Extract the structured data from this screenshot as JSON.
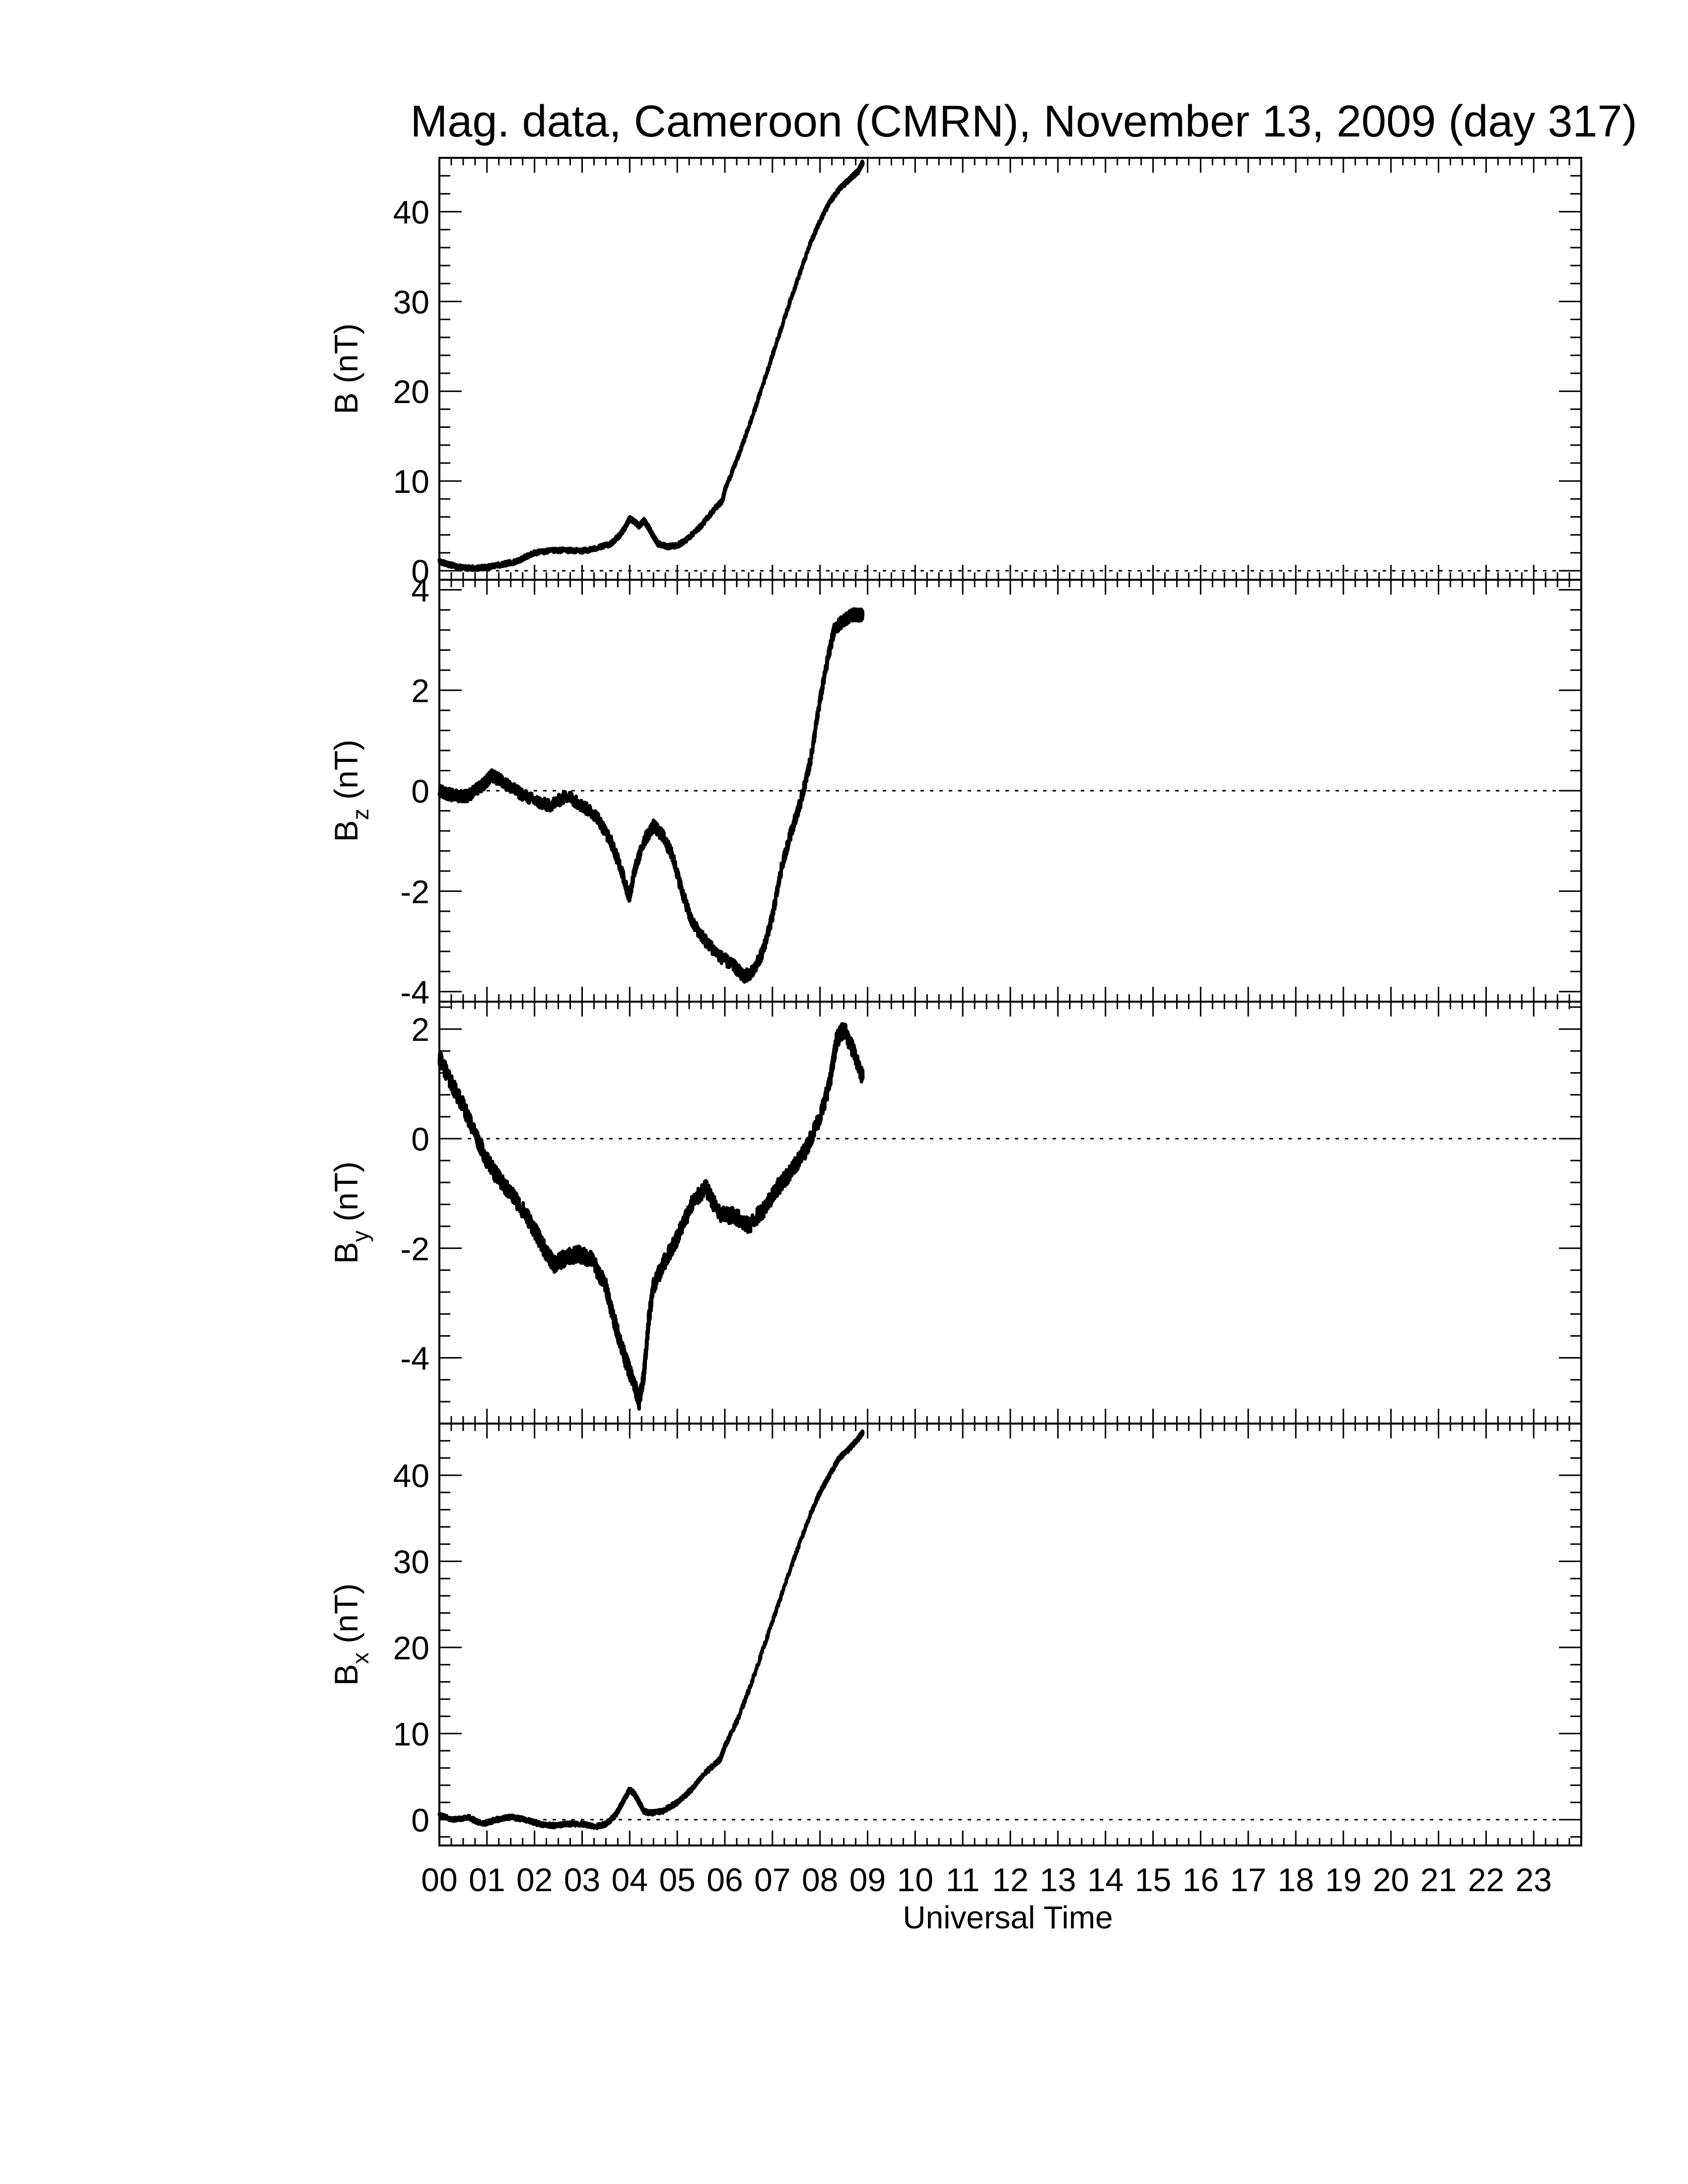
{
  "chart_data": {
    "type": "line",
    "title": "Mag. data, Cameroon (CMRN), November 13, 2009 (day 317)",
    "xlabel": "Universal Time",
    "xlim": [
      0,
      24
    ],
    "x_tick_labels": [
      "00",
      "01",
      "02",
      "03",
      "04",
      "05",
      "06",
      "07",
      "08",
      "09",
      "10",
      "11",
      "12",
      "13",
      "14",
      "15",
      "16",
      "17",
      "18",
      "19",
      "20",
      "21",
      "22",
      "23"
    ],
    "panels": [
      {
        "id": "B",
        "ylabel_main": "B (nT)",
        "ylabel_sub": "",
        "ylabel_unit": "",
        "ylim": [
          -1,
          46
        ],
        "yticks": [
          0,
          10,
          20,
          30,
          40
        ],
        "zero_line": true,
        "noise": 0.25,
        "series": {
          "x": [
            0,
            0.2,
            0.4,
            0.6,
            0.8,
            1.0,
            1.3,
            1.6,
            1.8,
            2.0,
            2.3,
            2.6,
            3.0,
            3.3,
            3.6,
            3.8,
            3.9,
            4.0,
            4.1,
            4.2,
            4.3,
            4.4,
            4.5,
            4.6,
            4.8,
            5.0,
            5.2,
            5.5,
            5.8,
            5.95,
            6.0,
            6.3,
            6.6,
            7.0,
            7.4,
            7.8,
            8.0,
            8.2,
            8.4,
            8.6,
            8.8,
            8.9
          ],
          "y": [
            1.0,
            0.7,
            0.4,
            0.3,
            0.3,
            0.4,
            0.7,
            1.0,
            1.5,
            2.0,
            2.2,
            2.3,
            2.2,
            2.5,
            3.0,
            4.0,
            4.8,
            5.8,
            5.5,
            5.0,
            5.6,
            4.8,
            3.8,
            3.0,
            2.7,
            2.8,
            3.5,
            5.0,
            7.0,
            7.8,
            9.0,
            13.0,
            17.5,
            24.0,
            30.5,
            36.5,
            39.0,
            41.0,
            42.5,
            43.5,
            44.5,
            45.5
          ]
        }
      },
      {
        "id": "Bz",
        "ylabel_main": "B",
        "ylabel_sub": "z",
        "ylabel_unit": "(nT)",
        "ylim": [
          -4.2,
          4.2
        ],
        "yticks": [
          -4,
          -2,
          0,
          2,
          4
        ],
        "zero_line": true,
        "noise": 0.12,
        "series": {
          "x": [
            0,
            0.3,
            0.6,
            0.9,
            1.1,
            1.3,
            1.6,
            2.0,
            2.3,
            2.7,
            3.0,
            3.3,
            3.6,
            3.8,
            3.95,
            4.0,
            4.1,
            4.3,
            4.5,
            4.7,
            4.9,
            5.1,
            5.3,
            5.6,
            5.9,
            6.2,
            6.4,
            6.6,
            6.8,
            7.0,
            7.2,
            7.4,
            7.6,
            7.8,
            8.0,
            8.2,
            8.3,
            8.5,
            8.7,
            8.9
          ],
          "y": [
            0.0,
            -0.1,
            -0.1,
            0.1,
            0.3,
            0.2,
            0.0,
            -0.2,
            -0.3,
            -0.1,
            -0.3,
            -0.5,
            -1.0,
            -1.5,
            -2.0,
            -2.1,
            -1.6,
            -1.0,
            -0.7,
            -0.9,
            -1.3,
            -2.0,
            -2.6,
            -3.0,
            -3.3,
            -3.5,
            -3.7,
            -3.6,
            -3.2,
            -2.5,
            -1.5,
            -0.8,
            -0.2,
            0.6,
            1.8,
            2.8,
            3.2,
            3.4,
            3.5,
            3.5
          ]
        }
      },
      {
        "id": "By",
        "ylabel_main": "B",
        "ylabel_sub": "y",
        "ylabel_unit": "(nT)",
        "ylim": [
          -5.2,
          2.5
        ],
        "yticks": [
          -4,
          -2,
          0,
          2
        ],
        "zero_line": true,
        "noise": 0.15,
        "series": {
          "x": [
            0,
            0.2,
            0.5,
            0.8,
            1.0,
            1.3,
            1.6,
            1.9,
            2.2,
            2.4,
            2.6,
            2.9,
            3.2,
            3.5,
            3.7,
            3.9,
            4.1,
            4.2,
            4.3,
            4.4,
            4.5,
            4.7,
            5.0,
            5.3,
            5.6,
            5.9,
            6.2,
            6.5,
            6.8,
            7.1,
            7.4,
            7.7,
            8.0,
            8.2,
            8.35,
            8.5,
            8.7,
            8.9
          ],
          "y": [
            1.5,
            1.1,
            0.6,
            0.0,
            -0.4,
            -0.8,
            -1.1,
            -1.5,
            -2.0,
            -2.3,
            -2.2,
            -2.1,
            -2.2,
            -2.7,
            -3.4,
            -4.0,
            -4.5,
            -4.8,
            -4.3,
            -3.3,
            -2.7,
            -2.3,
            -1.8,
            -1.2,
            -0.9,
            -1.4,
            -1.4,
            -1.6,
            -1.3,
            -0.9,
            -0.6,
            -0.2,
            0.4,
            1.0,
            1.8,
            2.0,
            1.6,
            1.1
          ]
        }
      },
      {
        "id": "Bx",
        "ylabel_main": "B",
        "ylabel_sub": "x",
        "ylabel_unit": "(nT)",
        "ylim": [
          -3,
          46
        ],
        "yticks": [
          0,
          10,
          20,
          30,
          40
        ],
        "zero_line": true,
        "noise": 0.25,
        "series": {
          "x": [
            0,
            0.3,
            0.6,
            0.9,
            1.2,
            1.5,
            1.8,
            2.1,
            2.4,
            2.7,
            3.0,
            3.3,
            3.5,
            3.7,
            3.8,
            3.9,
            4.0,
            4.1,
            4.2,
            4.3,
            4.4,
            4.5,
            4.7,
            5.0,
            5.3,
            5.6,
            5.9,
            6.0,
            6.3,
            6.6,
            7.0,
            7.4,
            7.8,
            8.0,
            8.2,
            8.4,
            8.6,
            8.8,
            8.9
          ],
          "y": [
            0.5,
            0.0,
            0.3,
            -0.5,
            0.0,
            0.3,
            0.0,
            -0.5,
            -0.7,
            -0.5,
            -0.5,
            -0.8,
            -0.5,
            0.5,
            1.5,
            2.5,
            3.5,
            3.0,
            2.0,
            1.0,
            0.8,
            0.8,
            1.0,
            2.0,
            3.5,
            5.5,
            7.0,
            8.5,
            12.0,
            16.5,
            23.0,
            29.5,
            35.5,
            38.0,
            40.0,
            42.0,
            43.0,
            44.2,
            45.0
          ]
        }
      }
    ]
  }
}
